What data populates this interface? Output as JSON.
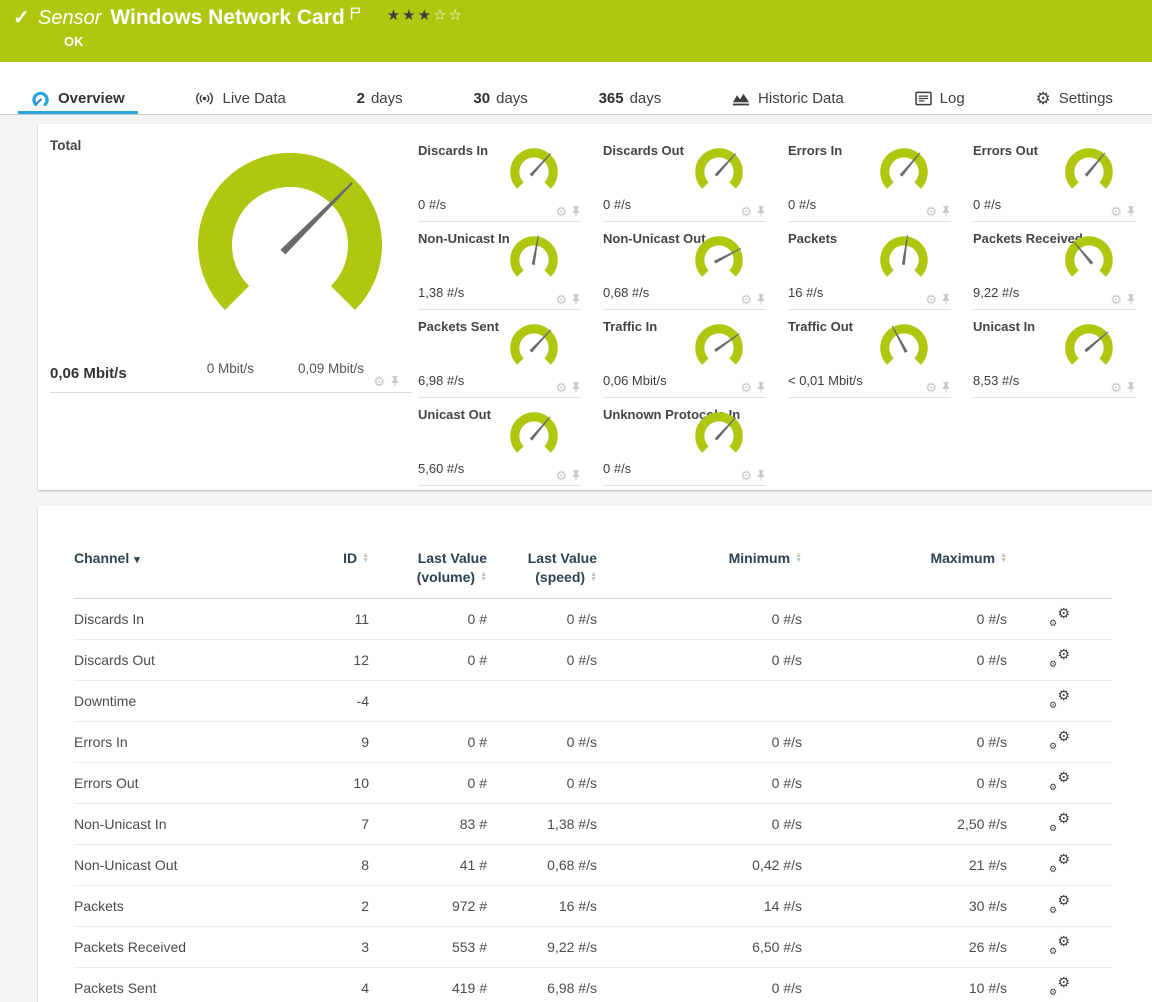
{
  "header": {
    "kind_label": "Sensor",
    "title": "Windows Network Card",
    "status": "OK",
    "priority": {
      "filled": 3,
      "total": 5
    }
  },
  "tabs": [
    {
      "id": "overview",
      "label": "Overview",
      "icon": "gauge-icon",
      "active": true
    },
    {
      "id": "live-data",
      "label": "Live Data",
      "icon": "broadcast-icon",
      "active": false
    },
    {
      "id": "2-days",
      "prefix": "2",
      "label": "days",
      "active": false
    },
    {
      "id": "30-days",
      "prefix": "30",
      "label": "days",
      "active": false
    },
    {
      "id": "365-days",
      "prefix": "365",
      "label": "days",
      "active": false
    },
    {
      "id": "historic-data",
      "label": "Historic Data",
      "icon": "historic-data-icon",
      "active": false
    },
    {
      "id": "log",
      "label": "Log",
      "icon": "log-icon",
      "active": false
    },
    {
      "id": "settings",
      "label": "Settings",
      "icon": "settings-gear-icon",
      "active": false
    }
  ],
  "total_gauge": {
    "label": "Total",
    "value": "0,06 Mbit/s",
    "scale_min": "0 Mbit/s",
    "scale_max": "0,09 Mbit/s",
    "needle_angle": 45
  },
  "gauges": [
    {
      "label": "Discards In",
      "value": "0 #/s",
      "needle_angle": 42
    },
    {
      "label": "Discards Out",
      "value": "0 #/s",
      "needle_angle": 42
    },
    {
      "label": "Errors In",
      "value": "0 #/s",
      "needle_angle": 40
    },
    {
      "label": "Errors Out",
      "value": "0 #/s",
      "needle_angle": 40
    },
    {
      "label": "Non-Unicast In",
      "value": "1,38 #/s",
      "needle_angle": 10
    },
    {
      "label": "Non-Unicast Out",
      "value": "0,68 #/s",
      "needle_angle": 62
    },
    {
      "label": "Packets",
      "value": "16 #/s",
      "needle_angle": 8
    },
    {
      "label": "Packets Received",
      "value": "9,22 #/s",
      "needle_angle": -40
    },
    {
      "label": "Packets Sent",
      "value": "6,98 #/s",
      "needle_angle": 43
    },
    {
      "label": "Traffic In",
      "value": "0,06 Mbit/s",
      "needle_angle": 55
    },
    {
      "label": "Traffic Out",
      "value": "< 0,01 Mbit/s",
      "needle_angle": -28
    },
    {
      "label": "Unicast In",
      "value": "8,53 #/s",
      "needle_angle": 50
    },
    {
      "label": "Unicast Out",
      "value": "5,60 #/s",
      "needle_angle": 40
    },
    {
      "label": "Unknown Protocols In",
      "value": "0 #/s",
      "needle_angle": 42
    }
  ],
  "table": {
    "columns": {
      "channel": {
        "label": "Channel",
        "sorted": true
      },
      "id": {
        "label": "ID"
      },
      "last_volume": {
        "label": "Last Value",
        "sublabel": "(volume)"
      },
      "last_speed": {
        "label": "Last Value",
        "sublabel": "(speed)"
      },
      "minimum": {
        "label": "Minimum"
      },
      "maximum": {
        "label": "Maximum"
      }
    },
    "rows": [
      {
        "channel": "Discards In",
        "id": "11",
        "last_volume": "0 #",
        "last_speed": "0 #/s",
        "minimum": "0 #/s",
        "maximum": "0 #/s"
      },
      {
        "channel": "Discards Out",
        "id": "12",
        "last_volume": "0 #",
        "last_speed": "0 #/s",
        "minimum": "0 #/s",
        "maximum": "0 #/s"
      },
      {
        "channel": "Downtime",
        "id": "-4",
        "last_volume": "",
        "last_speed": "",
        "minimum": "",
        "maximum": ""
      },
      {
        "channel": "Errors In",
        "id": "9",
        "last_volume": "0 #",
        "last_speed": "0 #/s",
        "minimum": "0 #/s",
        "maximum": "0 #/s"
      },
      {
        "channel": "Errors Out",
        "id": "10",
        "last_volume": "0 #",
        "last_speed": "0 #/s",
        "minimum": "0 #/s",
        "maximum": "0 #/s"
      },
      {
        "channel": "Non-Unicast In",
        "id": "7",
        "last_volume": "83 #",
        "last_speed": "1,38 #/s",
        "minimum": "0 #/s",
        "maximum": "2,50 #/s"
      },
      {
        "channel": "Non-Unicast Out",
        "id": "8",
        "last_volume": "41 #",
        "last_speed": "0,68 #/s",
        "minimum": "0,42 #/s",
        "maximum": "21 #/s"
      },
      {
        "channel": "Packets",
        "id": "2",
        "last_volume": "972 #",
        "last_speed": "16 #/s",
        "minimum": "14 #/s",
        "maximum": "30 #/s"
      },
      {
        "channel": "Packets Received",
        "id": "3",
        "last_volume": "553 #",
        "last_speed": "9,22 #/s",
        "minimum": "6,50 #/s",
        "maximum": "26 #/s"
      },
      {
        "channel": "Packets Sent",
        "id": "4",
        "last_volume": "419 #",
        "last_speed": "6,98 #/s",
        "minimum": "0 #/s",
        "maximum": "10 #/s"
      }
    ]
  },
  "colors": {
    "brand_green": "#aec810",
    "accent_blue": "#2ba7e0",
    "needle": "#6a6a6a",
    "table_header_text": "#2e4154"
  }
}
